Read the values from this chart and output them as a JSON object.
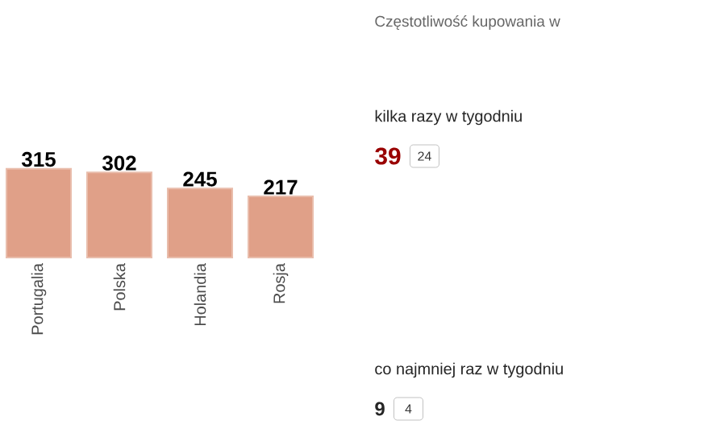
{
  "chart_data": [
    {
      "type": "bar",
      "categories": [
        "Portugalia",
        "Polska",
        "Holandia",
        "Rosja"
      ],
      "values": [
        315,
        302,
        245,
        217
      ],
      "color": "#e0a088",
      "data_labels": true
    },
    {
      "type": "other",
      "title": "Częstotliwość kupowania w",
      "annotations": [
        "kilka razy w tygodniu",
        "39",
        "24",
        "co najmniej raz w tygodniu",
        "9",
        "4"
      ]
    }
  ]
}
